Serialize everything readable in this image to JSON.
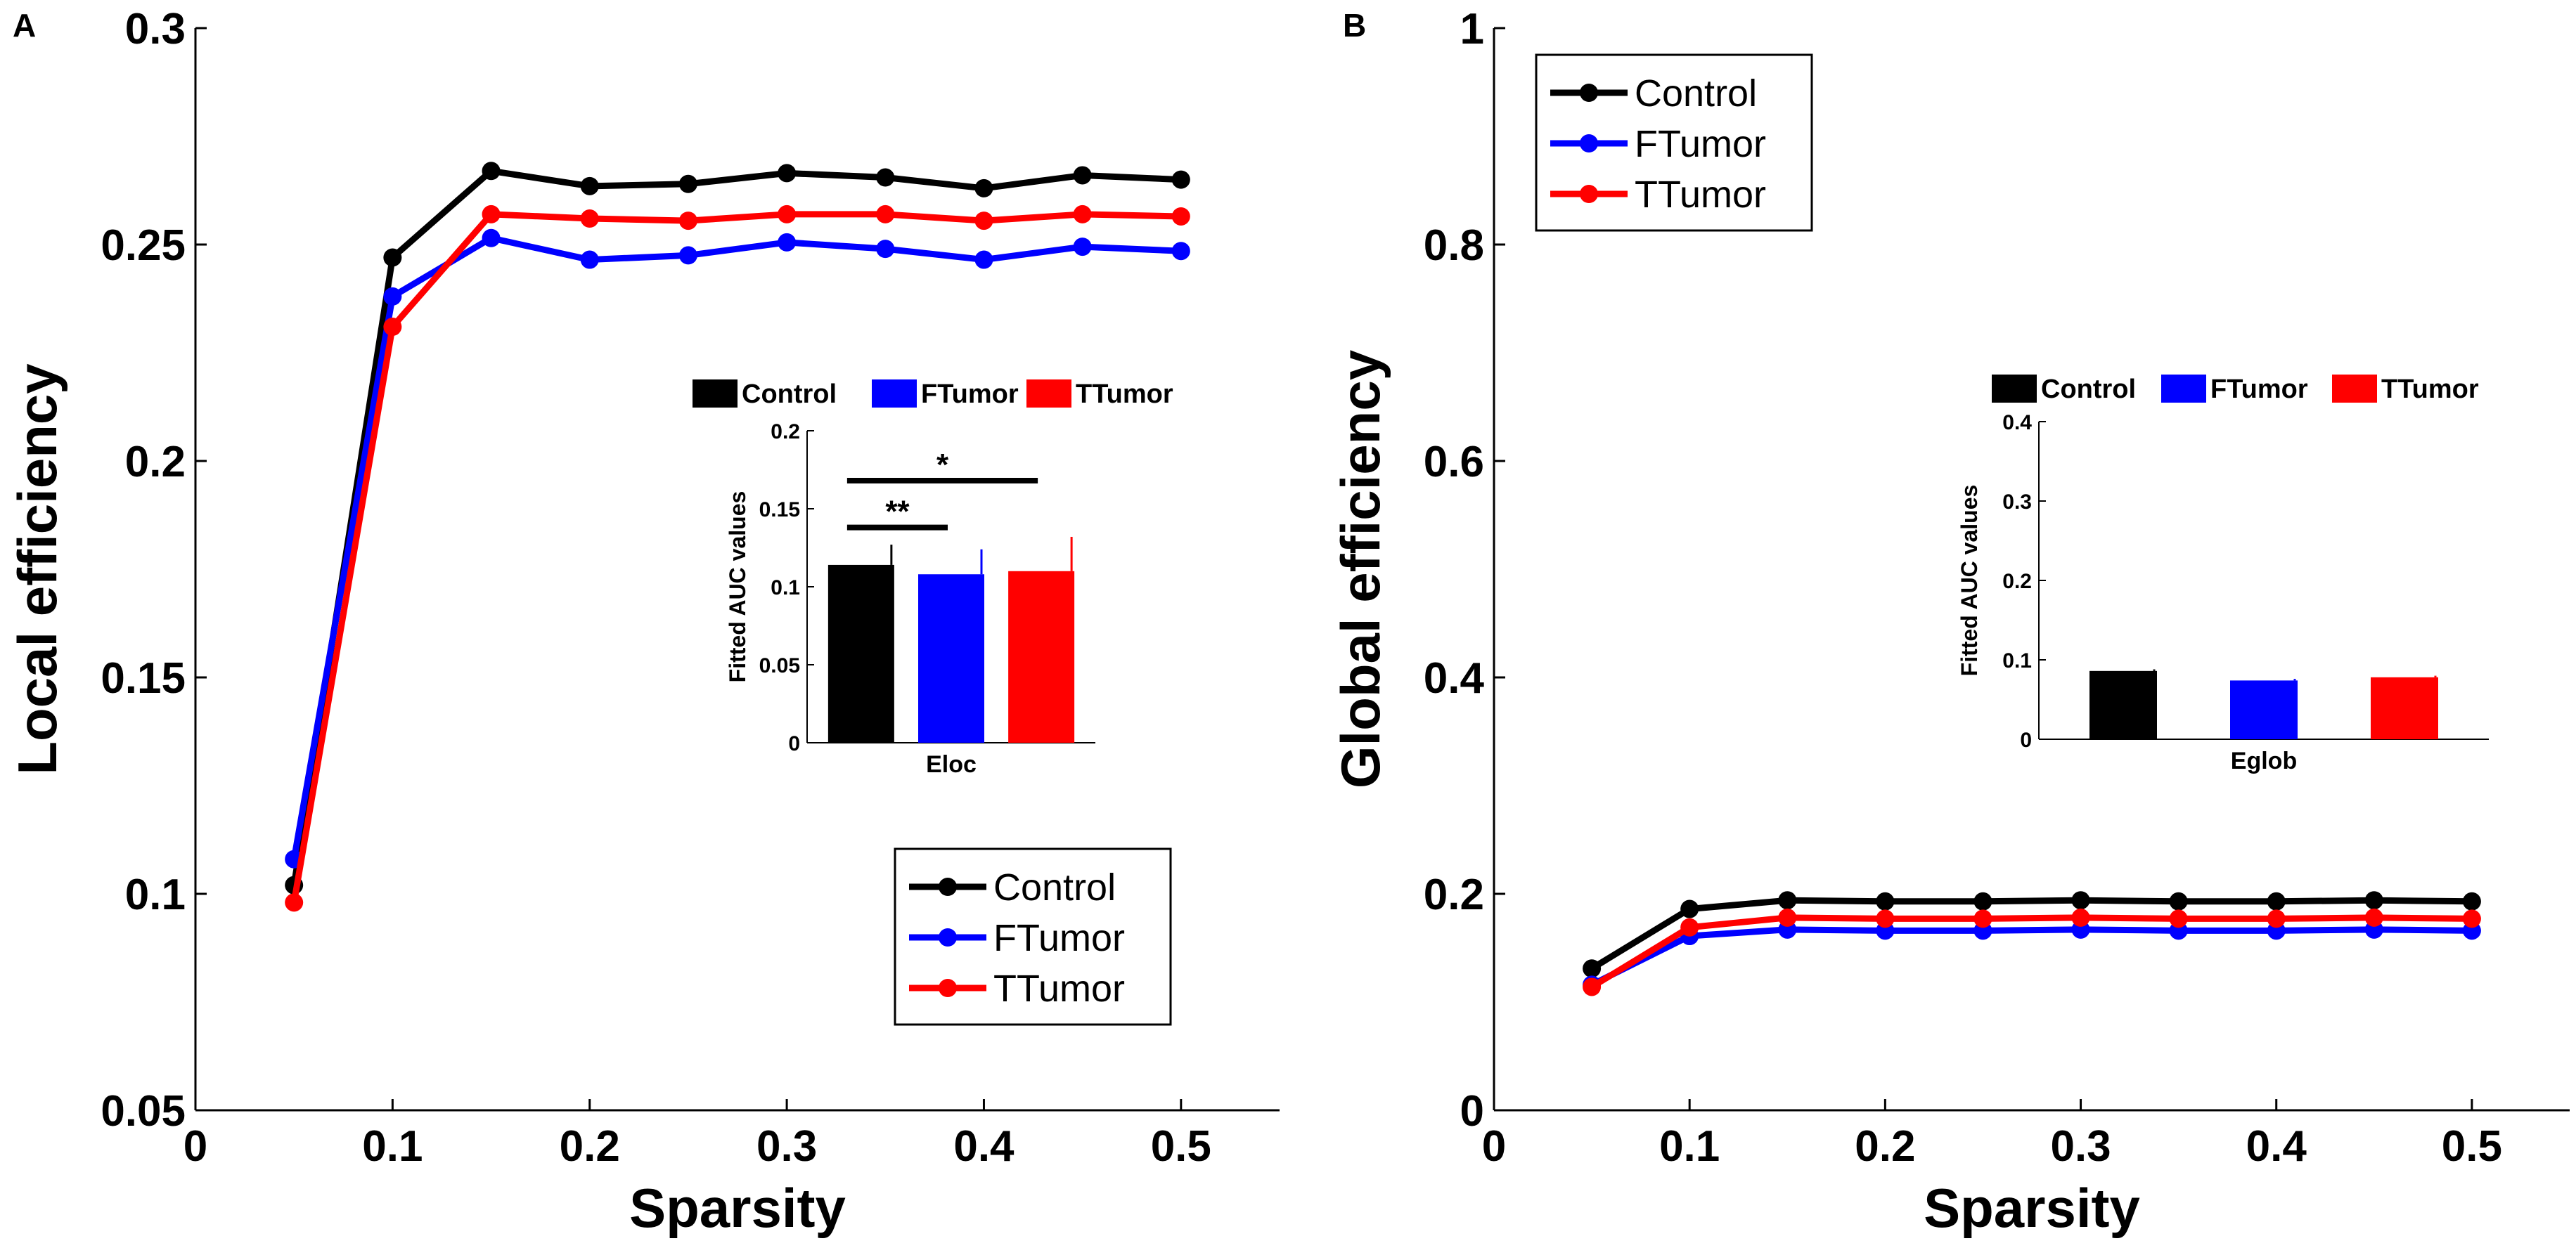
{
  "chart_data": [
    {
      "panel": "A",
      "type": "line",
      "xlabel": "Sparsity",
      "ylabel": "Local efficiency",
      "xlim": [
        0,
        0.55
      ],
      "ylim": [
        0.05,
        0.3
      ],
      "xticks": [
        "0",
        "0.1",
        "0.2",
        "0.3",
        "0.4",
        "0.5"
      ],
      "yticks": [
        "0.05",
        "0.1",
        "0.15",
        "0.2",
        "0.25",
        "0.3"
      ],
      "x": [
        0.05,
        0.1,
        0.15,
        0.2,
        0.25,
        0.3,
        0.35,
        0.4,
        0.45,
        0.5
      ],
      "series": [
        {
          "name": "Control",
          "color": "#000000",
          "values": [
            0.102,
            0.247,
            0.267,
            0.2635,
            0.264,
            0.2665,
            0.2655,
            0.263,
            0.266,
            0.265
          ]
        },
        {
          "name": "FTumor",
          "color": "#0000ff",
          "values": [
            0.108,
            0.238,
            0.2515,
            0.2465,
            0.2475,
            0.2505,
            0.249,
            0.2465,
            0.2495,
            0.2485
          ]
        },
        {
          "name": "TTumor",
          "color": "#ff0000",
          "values": [
            0.098,
            0.231,
            0.257,
            0.256,
            0.2555,
            0.257,
            0.257,
            0.2555,
            0.257,
            0.2565
          ]
        }
      ],
      "legend": [
        "Control",
        "FTumor",
        "TTumor"
      ],
      "legend_position": "lower-right",
      "inset": {
        "type": "bar",
        "xlabel": "Eloc",
        "ylabel": "Fitted AUC values",
        "ylim": [
          0,
          0.2
        ],
        "yticks": [
          "0",
          "0.05",
          "0.1",
          "0.15",
          "0.2"
        ],
        "legend": [
          "Control",
          "FTumor",
          "TTumor"
        ],
        "bars": [
          {
            "name": "Control",
            "color": "#000000",
            "value": 0.114,
            "err": 0.013
          },
          {
            "name": "FTumor",
            "color": "#0000ff",
            "value": 0.108,
            "err": 0.016
          },
          {
            "name": "TTumor",
            "color": "#ff0000",
            "value": 0.11,
            "err": 0.022
          }
        ],
        "significance": [
          {
            "from": "Control",
            "to": "FTumor",
            "label": "**"
          },
          {
            "from": "Control",
            "to": "TTumor",
            "label": "*"
          }
        ]
      }
    },
    {
      "panel": "B",
      "type": "line",
      "xlabel": "Sparsity",
      "ylabel": "Global efficiency",
      "xlim": [
        0,
        0.55
      ],
      "ylim": [
        0,
        1
      ],
      "xticks": [
        "0",
        "0.1",
        "0.2",
        "0.3",
        "0.4",
        "0.5"
      ],
      "yticks": [
        "0",
        "0.2",
        "0.4",
        "0.6",
        "0.8",
        "1"
      ],
      "x": [
        0.05,
        0.1,
        0.15,
        0.2,
        0.25,
        0.3,
        0.35,
        0.4,
        0.45,
        0.5
      ],
      "series": [
        {
          "name": "Control",
          "color": "#000000",
          "values": [
            0.131,
            0.186,
            0.194,
            0.193,
            0.193,
            0.194,
            0.193,
            0.193,
            0.194,
            0.193
          ]
        },
        {
          "name": "FTumor",
          "color": "#0000ff",
          "values": [
            0.116,
            0.161,
            0.167,
            0.166,
            0.166,
            0.167,
            0.166,
            0.166,
            0.167,
            0.166
          ]
        },
        {
          "name": "TTumor",
          "color": "#ff0000",
          "values": [
            0.114,
            0.169,
            0.178,
            0.177,
            0.177,
            0.178,
            0.177,
            0.177,
            0.178,
            0.177
          ]
        }
      ],
      "legend": [
        "Control",
        "FTumor",
        "TTumor"
      ],
      "legend_position": "top-left",
      "inset": {
        "type": "bar",
        "xlabel": "Eglob",
        "ylabel": "Fitted AUC values",
        "ylim": [
          0,
          0.4
        ],
        "yticks": [
          "0",
          "0.1",
          "0.2",
          "0.3",
          "0.4"
        ],
        "legend": [
          "Control",
          "FTumor",
          "TTumor"
        ],
        "bars": [
          {
            "name": "Control",
            "color": "#000000",
            "value": 0.086,
            "err": 0.002
          },
          {
            "name": "FTumor",
            "color": "#0000ff",
            "value": 0.074,
            "err": 0.002
          },
          {
            "name": "TTumor",
            "color": "#ff0000",
            "value": 0.078,
            "err": 0.002
          }
        ],
        "significance": []
      }
    }
  ]
}
